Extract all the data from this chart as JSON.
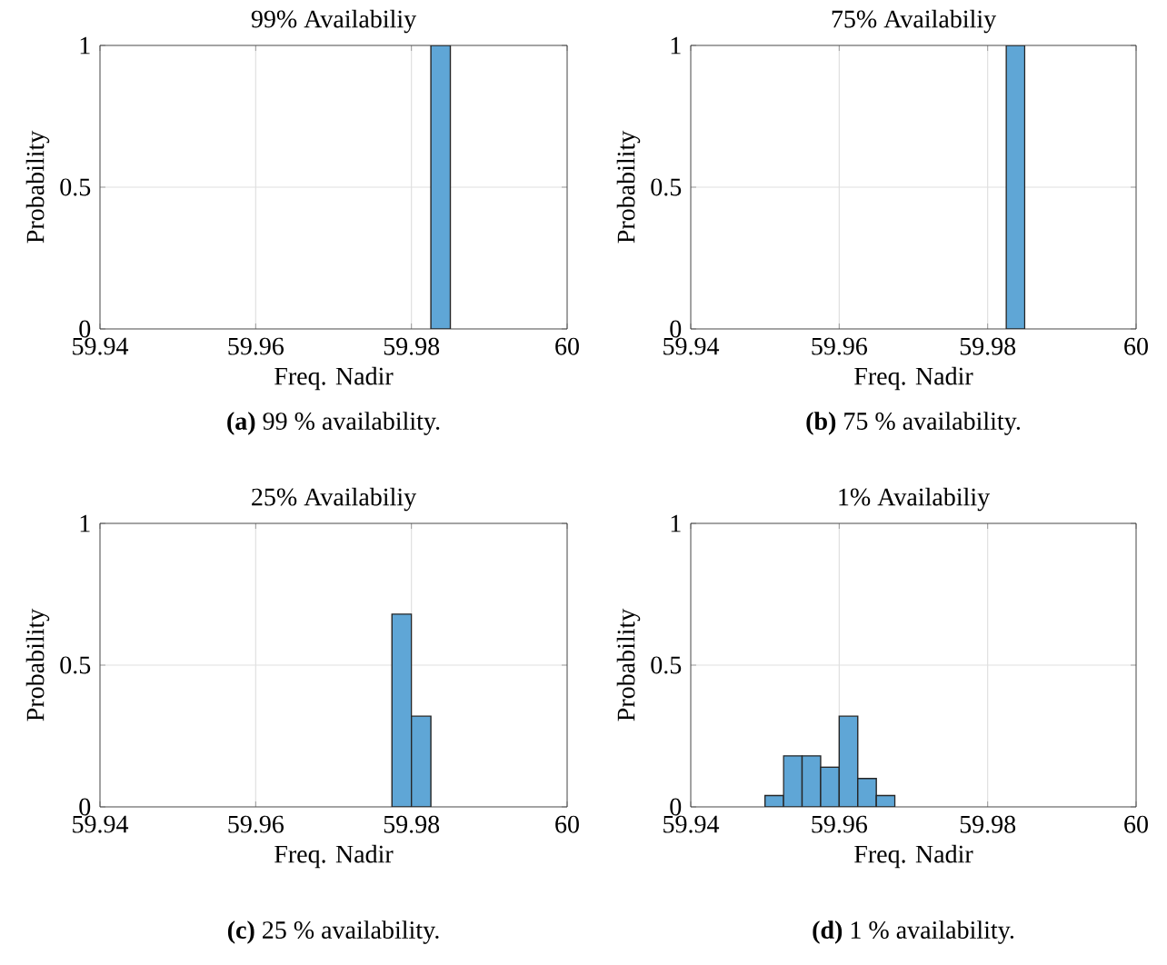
{
  "chart_data": [
    {
      "type": "histogram",
      "title": "99% Availabiliy",
      "xlabel": "Freq. Nadir",
      "ylabel": "Probability",
      "bins": [
        59.9825,
        59.985
      ],
      "values": [
        1
      ],
      "color": "#5fa6d6",
      "xlim": [
        59.94,
        60
      ],
      "ylim": [
        0,
        1
      ],
      "xticks": [
        59.94,
        59.96,
        59.98,
        60
      ],
      "yticks": [
        0,
        0.5,
        1
      ],
      "grid": true,
      "annotations": [
        "**(a)** 99 % availability."
      ]
    },
    {
      "type": "histogram",
      "title": "75% Availabiliy",
      "xlabel": "Freq. Nadir",
      "ylabel": "Probability",
      "bins": [
        59.9825,
        59.985
      ],
      "values": [
        1
      ],
      "color": "#5fa6d6",
      "xlim": [
        59.94,
        60
      ],
      "ylim": [
        0,
        1
      ],
      "xticks": [
        59.94,
        59.96,
        59.98,
        60
      ],
      "yticks": [
        0,
        0.5,
        1
      ],
      "grid": true,
      "annotations": [
        "**(b)** 75 % availability."
      ]
    },
    {
      "type": "histogram",
      "title": "25% Availabiliy",
      "xlabel": "Freq. Nadir",
      "ylabel": "Probability",
      "bins": [
        59.9775,
        59.98,
        59.9825
      ],
      "values": [
        0.68,
        0.32
      ],
      "color": "#5fa6d6",
      "xlim": [
        59.94,
        60
      ],
      "ylim": [
        0,
        1
      ],
      "xticks": [
        59.94,
        59.96,
        59.98,
        60
      ],
      "yticks": [
        0,
        0.5,
        1
      ],
      "grid": true,
      "annotations": [
        "**(c)** 25 % availability."
      ]
    },
    {
      "type": "histogram",
      "title": "1% Availabiliy",
      "xlabel": "Freq. Nadir",
      "ylabel": "Probability",
      "bins": [
        59.95,
        59.9525,
        59.955,
        59.9575,
        59.96,
        59.9625,
        59.965,
        59.9675
      ],
      "values": [
        0.04,
        0.18,
        0.18,
        0.14,
        0.32,
        0.1,
        0.04
      ],
      "color": "#5fa6d6",
      "xlim": [
        59.94,
        60
      ],
      "ylim": [
        0,
        1
      ],
      "xticks": [
        59.94,
        59.96,
        59.98,
        60
      ],
      "yticks": [
        0,
        0.5,
        1
      ],
      "grid": true,
      "annotations": [
        "**(d)** 1 % availability."
      ]
    }
  ]
}
